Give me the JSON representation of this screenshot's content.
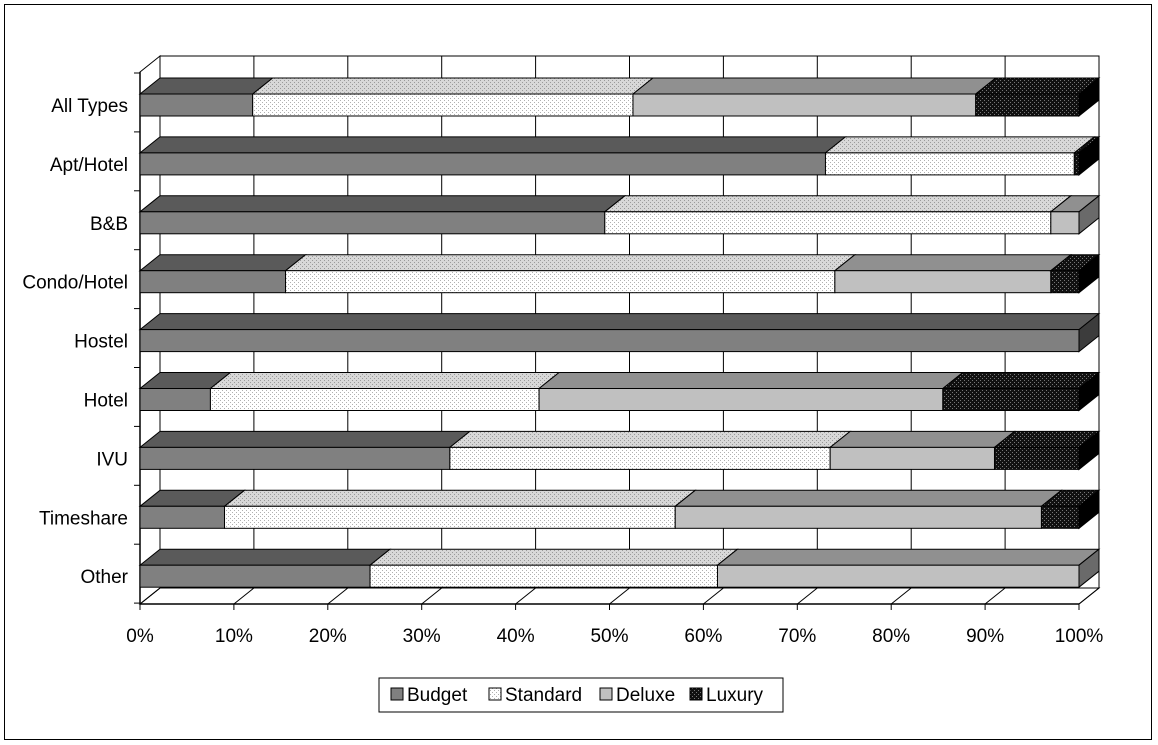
{
  "chart_data": {
    "type": "bar",
    "orientation": "horizontal",
    "stacked": "percent",
    "three_d": true,
    "title": "",
    "xlabel": "",
    "ylabel": "",
    "xlim": [
      0,
      100
    ],
    "x_tick_labels": [
      "0%",
      "10%",
      "20%",
      "30%",
      "40%",
      "50%",
      "60%",
      "70%",
      "80%",
      "90%",
      "100%"
    ],
    "grid": true,
    "legend_position": "bottom",
    "categories": [
      "All Types",
      "Apt/Hotel",
      "B&B",
      "Condo/Hotel",
      "Hostel",
      "Hotel",
      "IVU",
      "Timeshare",
      "Other"
    ],
    "series": [
      {
        "name": "Budget",
        "color": "#808080",
        "values": [
          12,
          73,
          49.5,
          15.5,
          100,
          7.5,
          33,
          9,
          24.5
        ]
      },
      {
        "name": "Standard",
        "color": "#f4f4f4",
        "values": [
          40.5,
          26.5,
          47.5,
          58.5,
          0,
          35,
          40.5,
          48,
          37
        ]
      },
      {
        "name": "Deluxe",
        "color": "#c0c0c0",
        "values": [
          36.5,
          0,
          3,
          23,
          0,
          43,
          17.5,
          39,
          38.5
        ]
      },
      {
        "name": "Luxury",
        "color": "#202020",
        "values": [
          11,
          0.5,
          0,
          3,
          0,
          14.5,
          9,
          4,
          0
        ]
      }
    ]
  }
}
